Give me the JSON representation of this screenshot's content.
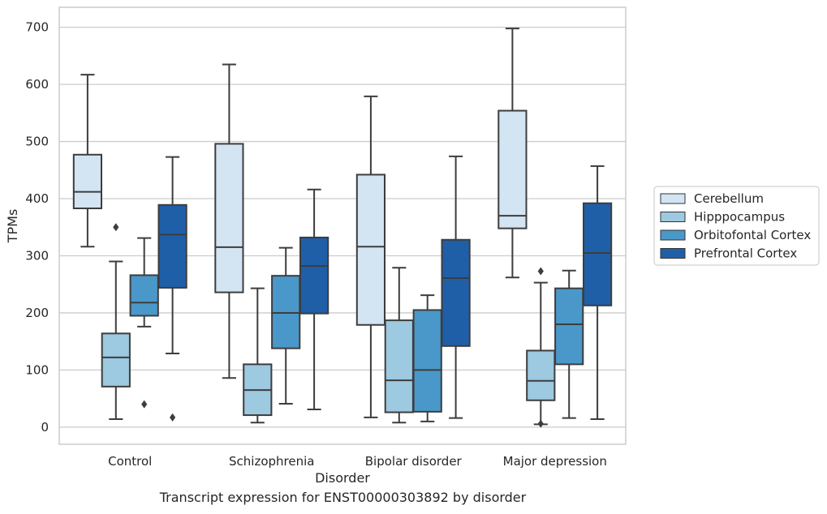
{
  "caption": "Transcript expression for ENST00000303892 by disorder",
  "colors": {
    "Cerebellum": "#d3e4f3",
    "Hipppocampus": "#9dc9e1",
    "Orbitofontal Cortex": "#4a98c9",
    "Prefrontal Cortex": "#1f5fa8",
    "line": "#3d3d3d",
    "grid": "#cccccc"
  },
  "chart_data": {
    "type": "box",
    "xlabel": "Disorder",
    "ylabel": "TPMs",
    "ylim": [
      -30,
      735
    ],
    "yticks": [
      0,
      100,
      200,
      300,
      400,
      500,
      600,
      700
    ],
    "grid": "horizontal",
    "legend_placement": "right",
    "categories": [
      "Control",
      "Schizophrenia",
      "Bipolar disorder",
      "Major depression"
    ],
    "series": [
      {
        "name": "Cerebellum",
        "boxes": [
          {
            "whisker_low": 316,
            "q1": 383,
            "median": 412,
            "q3": 477,
            "whisker_high": 617,
            "outliers": []
          },
          {
            "whisker_low": 86,
            "q1": 236,
            "median": 315,
            "q3": 496,
            "whisker_high": 635,
            "outliers": []
          },
          {
            "whisker_low": 17,
            "q1": 179,
            "median": 316,
            "q3": 442,
            "whisker_high": 579,
            "outliers": []
          },
          {
            "whisker_low": 262,
            "q1": 348,
            "median": 370,
            "q3": 554,
            "whisker_high": 698,
            "outliers": []
          }
        ]
      },
      {
        "name": "Hipppocampus",
        "boxes": [
          {
            "whisker_low": 14,
            "q1": 71,
            "median": 122,
            "q3": 164,
            "whisker_high": 290,
            "outliers": [
              350
            ]
          },
          {
            "whisker_low": 8,
            "q1": 21,
            "median": 65,
            "q3": 110,
            "whisker_high": 243,
            "outliers": []
          },
          {
            "whisker_low": 8,
            "q1": 26,
            "median": 82,
            "q3": 187,
            "whisker_high": 279,
            "outliers": []
          },
          {
            "whisker_low": 5,
            "q1": 47,
            "median": 81,
            "q3": 134,
            "whisker_high": 253,
            "outliers": [
              6,
              273
            ]
          }
        ]
      },
      {
        "name": "Orbitofontal Cortex",
        "boxes": [
          {
            "whisker_low": 176,
            "q1": 195,
            "median": 218,
            "q3": 266,
            "whisker_high": 331,
            "outliers": [
              40
            ]
          },
          {
            "whisker_low": 41,
            "q1": 138,
            "median": 200,
            "q3": 265,
            "whisker_high": 314,
            "outliers": []
          },
          {
            "whisker_low": 10,
            "q1": 27,
            "median": 100,
            "q3": 205,
            "whisker_high": 231,
            "outliers": []
          },
          {
            "whisker_low": 16,
            "q1": 110,
            "median": 180,
            "q3": 243,
            "whisker_high": 274,
            "outliers": []
          }
        ]
      },
      {
        "name": "Prefrontal Cortex",
        "boxes": [
          {
            "whisker_low": 129,
            "q1": 244,
            "median": 337,
            "q3": 389,
            "whisker_high": 473,
            "outliers": [
              17
            ]
          },
          {
            "whisker_low": 31,
            "q1": 199,
            "median": 282,
            "q3": 332,
            "whisker_high": 416,
            "outliers": []
          },
          {
            "whisker_low": 16,
            "q1": 142,
            "median": 261,
            "q3": 328,
            "whisker_high": 474,
            "outliers": []
          },
          {
            "whisker_low": 14,
            "q1": 213,
            "median": 305,
            "q3": 392,
            "whisker_high": 457,
            "outliers": []
          }
        ]
      }
    ]
  }
}
